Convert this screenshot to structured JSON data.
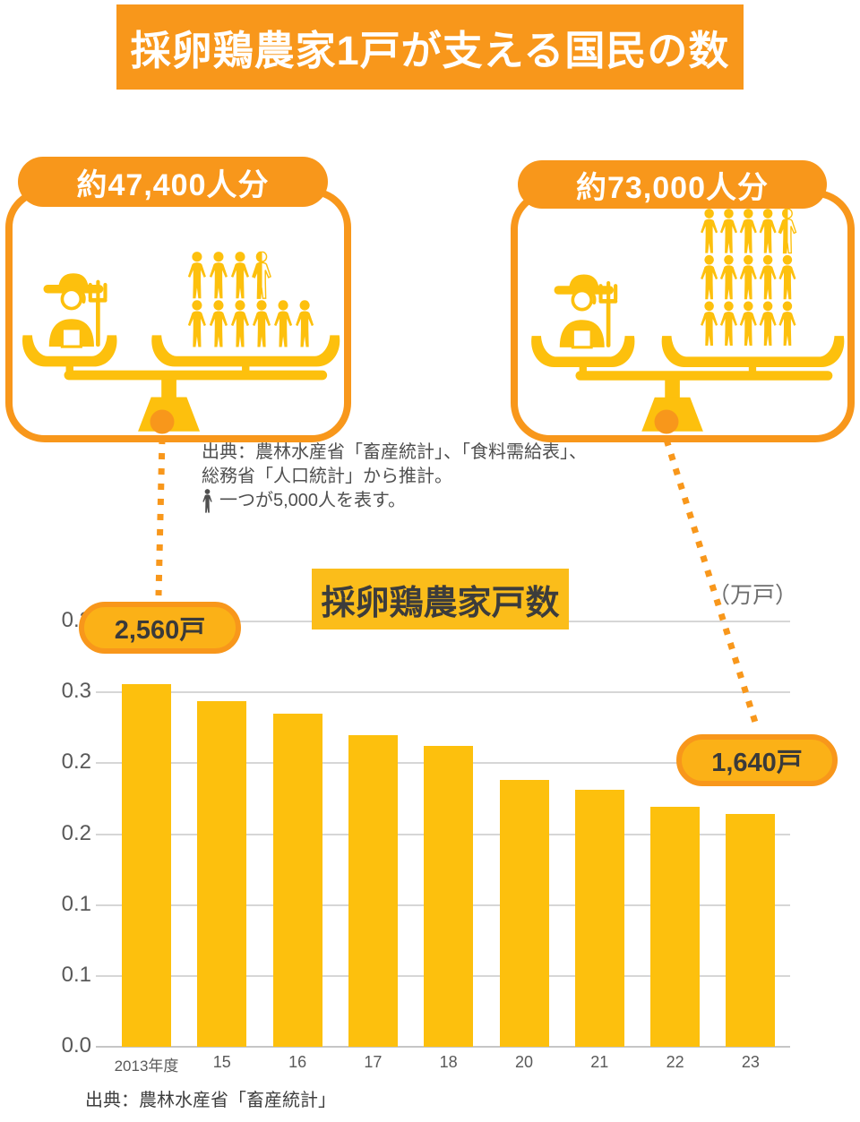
{
  "header": {
    "title": "採卵鶏農家1戸が支える国民の数"
  },
  "cards": [
    {
      "badge": "約47,400人分",
      "people_rows": [
        {
          "filled": 3,
          "half": 1
        },
        {
          "filled": 6,
          "half": 0
        }
      ]
    },
    {
      "badge": "約73,000人分",
      "people_rows": [
        {
          "filled": 4,
          "half": 1
        },
        {
          "filled": 5,
          "half": 0
        },
        {
          "filled": 5,
          "half": 0
        }
      ]
    }
  ],
  "note": {
    "line1": "出典：農林水産省「畜産統計」、「食料需給表」、",
    "line2": "総務省「人口統計」から推計。",
    "line3": "一つが5,000人を表す。"
  },
  "chart_data": {
    "type": "bar",
    "title": "採卵鶏農家戸数",
    "unit_label": "（万戸）",
    "categories": [
      "2013年度",
      "15",
      "16",
      "17",
      "18",
      "20",
      "21",
      "22",
      "23"
    ],
    "values": [
      0.256,
      0.244,
      0.235,
      0.22,
      0.212,
      0.188,
      0.181,
      0.169,
      0.164
    ],
    "values_in_ko": [
      2560,
      2440,
      2350,
      2200,
      2120,
      1880,
      1810,
      1690,
      1640
    ],
    "ylim": [
      0,
      0.3
    ],
    "y_tick_values": [
      0.3,
      0.25,
      0.2,
      0.15,
      0.1,
      0.05,
      0
    ],
    "y_tick_labels": [
      "0.3",
      "0.3",
      "0.2",
      "0.2",
      "0.1",
      "0.1",
      "0.0"
    ],
    "grid": true,
    "callouts": [
      {
        "label": "2,560戸",
        "category": "2013年度"
      },
      {
        "label": "1,640戸",
        "category": "23"
      }
    ],
    "source": "出典：農林水産省「畜産統計」"
  },
  "colors": {
    "orange": "#F8971B",
    "amber": "#FDC00D",
    "title_box_bg": "#FBBD1A",
    "callout_fill": "#FBB117",
    "banner_text": "#FFFFFF",
    "grid_line": "#D6D6D6",
    "axis_text": "#595959",
    "note_text": "#4F4F4F",
    "dark_text": "#3C3C3C"
  }
}
